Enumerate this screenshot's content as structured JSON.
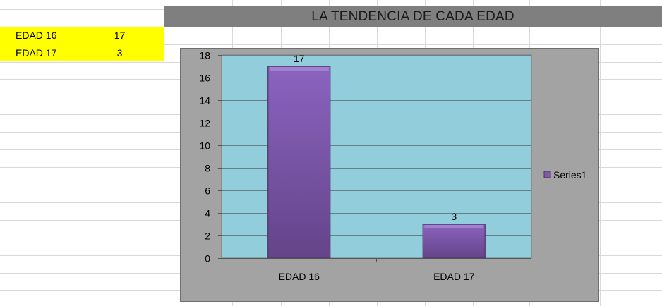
{
  "sheet": {
    "rows": [
      {
        "label": "EDAD 16",
        "value": "17"
      },
      {
        "label": "EDAD 17",
        "value": "3"
      }
    ],
    "highlight_color": "#ffff00"
  },
  "chart_data": {
    "type": "bar",
    "title": "LA TENDENCIA DE CADA EDAD",
    "categories": [
      "EDAD 16",
      "EDAD 17"
    ],
    "series": [
      {
        "name": "Series1",
        "values": [
          17,
          3
        ],
        "color": "#7b5aa6"
      }
    ],
    "data_labels": [
      "17",
      "3"
    ],
    "ylim": [
      0,
      18
    ],
    "yticks": [
      "0",
      "2",
      "4",
      "6",
      "8",
      "10",
      "12",
      "14",
      "16",
      "18"
    ],
    "grid": true,
    "legend_position": "right",
    "plot_background": "#92cddc",
    "chart_background": "#a3a3a3",
    "title_bar_color": "#7f7f7f"
  }
}
